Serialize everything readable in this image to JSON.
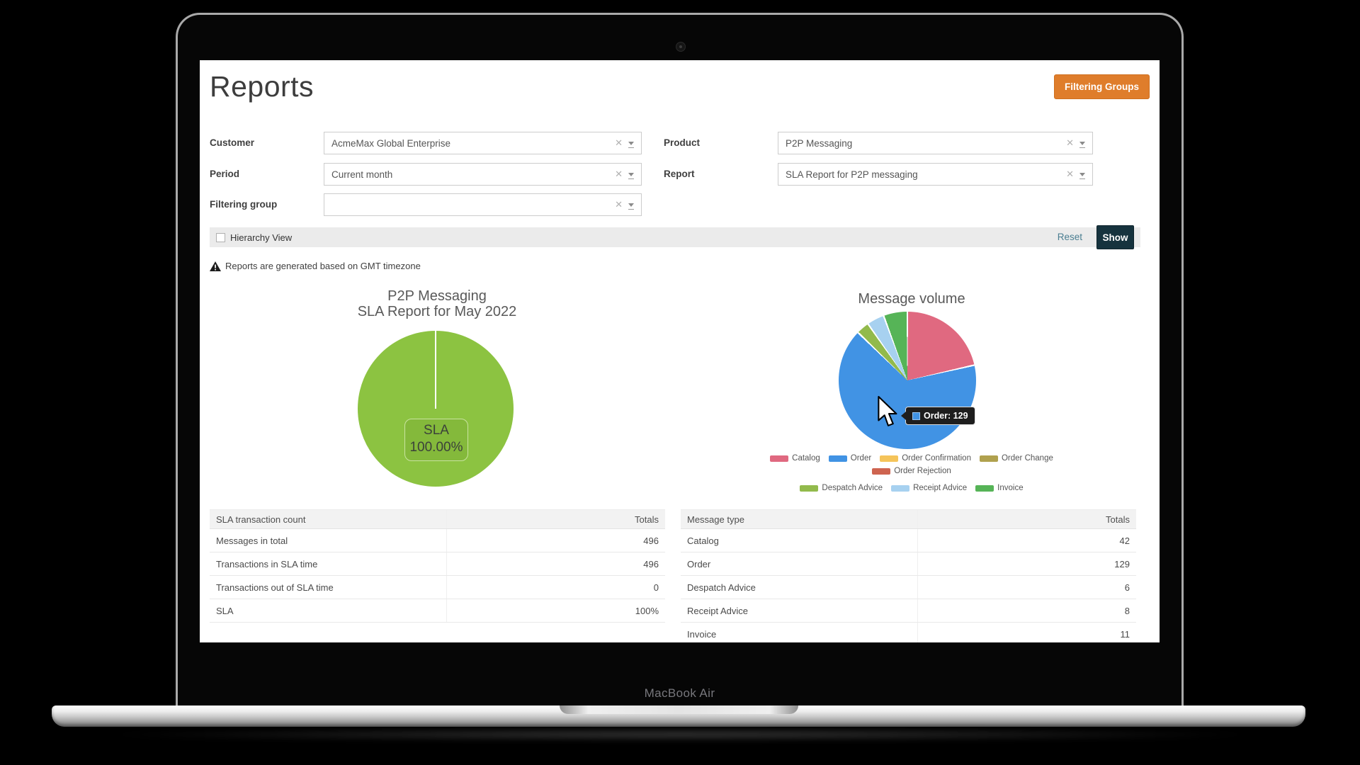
{
  "device": {
    "label": "MacBook Air"
  },
  "page": {
    "title": "Reports",
    "filtering_groups_button": "Filtering Groups"
  },
  "filters": {
    "customer": {
      "label": "Customer",
      "value": "AcmeMax Global Enterprise"
    },
    "product": {
      "label": "Product",
      "value": "P2P Messaging"
    },
    "period": {
      "label": "Period",
      "value": "Current month"
    },
    "report": {
      "label": "Report",
      "value": "SLA Report for P2P messaging"
    },
    "filtering_group": {
      "label": "Filtering group",
      "value": ""
    }
  },
  "toolbar": {
    "hierarchy_view_label": "Hierarchy View",
    "hierarchy_checked": false,
    "reset_label": "Reset",
    "show_label": "Show"
  },
  "notice": "Reports are generated based on GMT timezone",
  "chart_data": [
    {
      "type": "pie",
      "title": "P2P Messaging SLA Report for May 2022",
      "title_lines": [
        "P2P Messaging",
        "SLA Report for May 2022"
      ],
      "categories": [
        "SLA"
      ],
      "values": [
        100
      ],
      "colors": [
        "#8CC341"
      ],
      "center_label": {
        "line1": "SLA",
        "line2": "100.00%"
      },
      "legend_position": "none"
    },
    {
      "type": "pie",
      "title": "Message volume",
      "categories": [
        "Catalog",
        "Order",
        "Despatch Advice",
        "Receipt Advice",
        "Invoice"
      ],
      "values": [
        42,
        129,
        6,
        8,
        11
      ],
      "colors": [
        "#E06980",
        "#4193E4",
        "#92BA4C",
        "#A7D1F0",
        "#56B457"
      ],
      "legend_position": "bottom",
      "legend_row_break": 5,
      "legend_entries": [
        {
          "label": "Catalog",
          "color": "#E06980"
        },
        {
          "label": "Order",
          "color": "#4193E4"
        },
        {
          "label": "Order Confirmation",
          "color": "#F5C45A"
        },
        {
          "label": "Order Change",
          "color": "#B0A14E"
        },
        {
          "label": "Order Rejection",
          "color": "#CE6450"
        },
        {
          "label": "Despatch Advice",
          "color": "#92BA4C"
        },
        {
          "label": "Receipt Advice",
          "color": "#A7D1F0"
        },
        {
          "label": "Invoice",
          "color": "#56B457"
        }
      ],
      "tooltip": {
        "label": "Order",
        "value": 129,
        "text": "Order: 129",
        "swatch_color": "#4193E4"
      }
    }
  ],
  "tables": {
    "sla": {
      "header": [
        "SLA transaction count",
        "Totals"
      ],
      "rows": [
        [
          "Messages in total",
          "496"
        ],
        [
          "Transactions in SLA time",
          "496"
        ],
        [
          "Transactions out of SLA time",
          "0"
        ],
        [
          "SLA",
          "100%"
        ]
      ]
    },
    "message_type": {
      "header": [
        "Message type",
        "Totals"
      ],
      "rows": [
        [
          "Catalog",
          "42"
        ],
        [
          "Order",
          "129"
        ],
        [
          "Despatch Advice",
          "6"
        ],
        [
          "Receipt Advice",
          "8"
        ],
        [
          "Invoice",
          "11"
        ]
      ]
    }
  },
  "colors": {
    "accent_orange": "#DF7D2B",
    "show_button": "#16333E",
    "reset_link": "#4A7E91",
    "toolbar_bar": "#EBEBEB",
    "sla_pie_green": "#8CC341",
    "sla_badge_green": "#84B93B"
  }
}
